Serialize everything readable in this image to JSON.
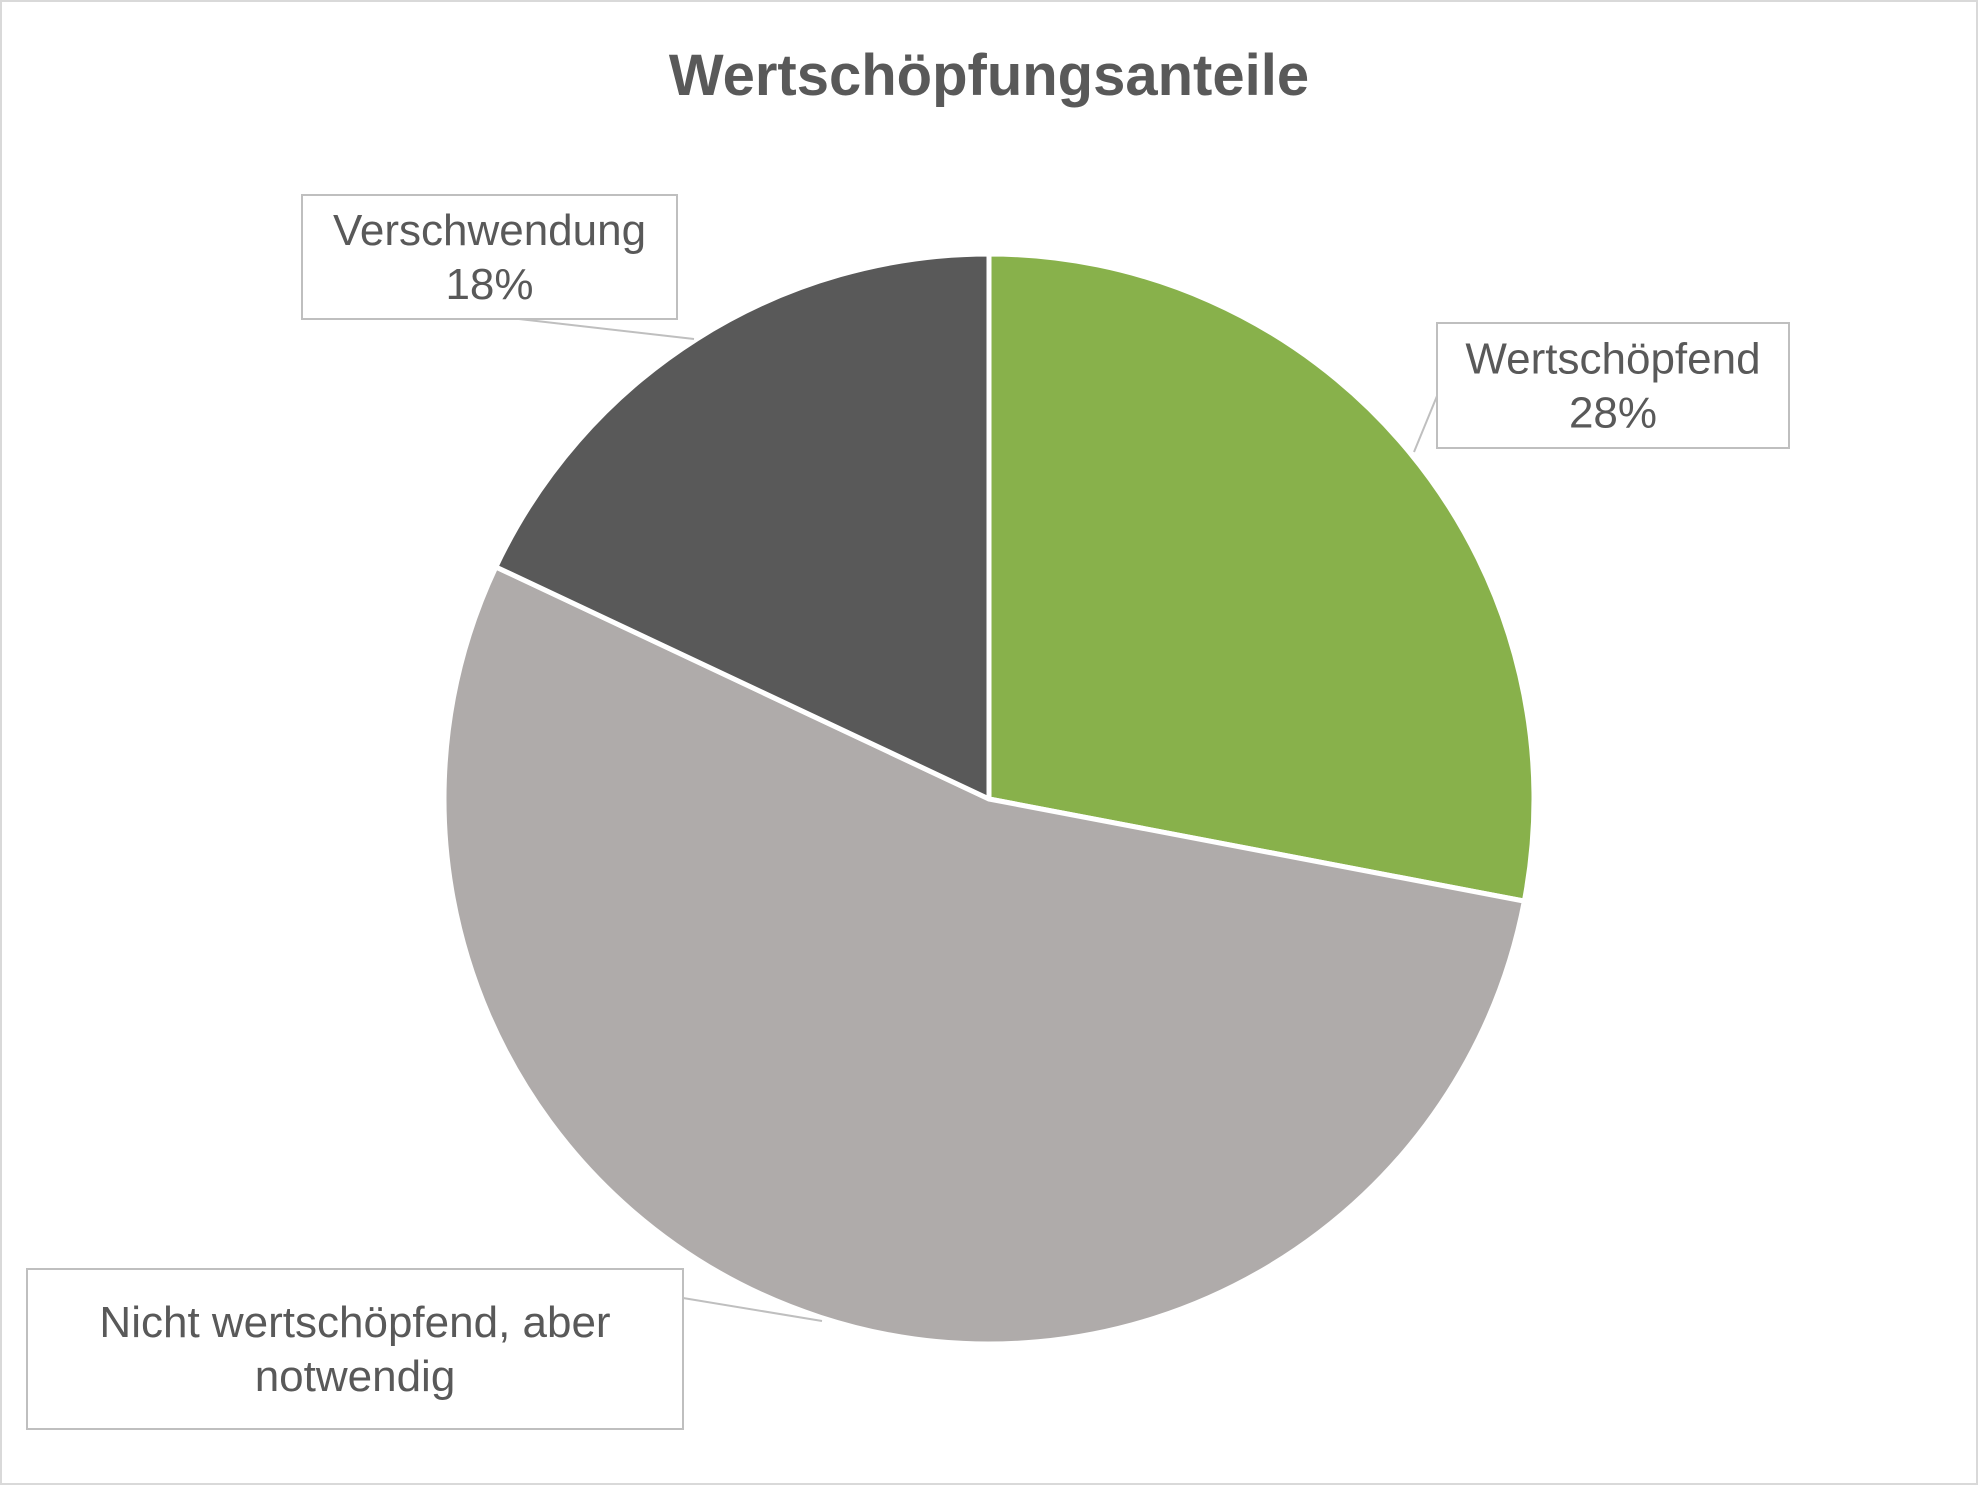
{
  "chart_data": {
    "type": "pie",
    "title": "Wertschöpfungsanteile",
    "start_angle_deg": 0,
    "direction": "clockwise",
    "slices": [
      {
        "name": "Wertschöpfend",
        "value": 28,
        "percent_label": "28%",
        "color": "#88b14b",
        "label_lines": [
          "Wertschöpfend",
          "28%"
        ]
      },
      {
        "name": "Nicht wertschöpfend, aber notwendig",
        "value": 54,
        "percent_label": "",
        "color": "#afabaa",
        "label_lines": [
          "Nicht wertschöpfend, aber",
          "notwendig"
        ]
      },
      {
        "name": "Verschwendung",
        "value": 18,
        "percent_label": "18%",
        "color": "#595959",
        "label_lines": [
          "Verschwendung",
          "18%"
        ]
      }
    ],
    "legend": "none",
    "data_labels": "callouts"
  }
}
